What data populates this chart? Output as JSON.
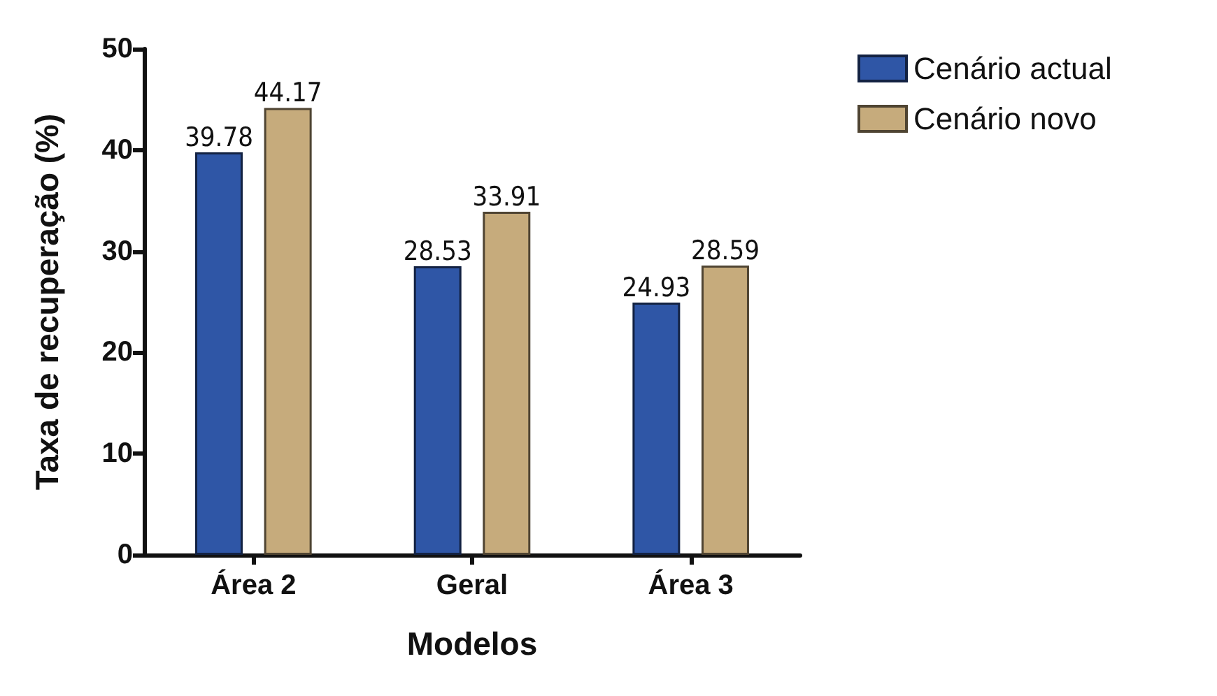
{
  "chart_data": {
    "type": "bar",
    "xlabel": "Modelos",
    "ylabel": "Taxa de recuperação (%)",
    "categories": [
      "Área 2",
      "Geral",
      "Área 3"
    ],
    "series": [
      {
        "name": "Cenário actual",
        "color": "#2f56a6",
        "values": [
          39.78,
          28.53,
          24.93
        ]
      },
      {
        "name": "Cenário novo",
        "color": "#c6ab7c",
        "values": [
          44.17,
          33.91,
          28.59
        ]
      }
    ],
    "ylim": [
      0,
      50
    ],
    "yticks": [
      0,
      10,
      20,
      30,
      40,
      50
    ],
    "grid": false,
    "legend": "top right",
    "data_labels": true
  }
}
